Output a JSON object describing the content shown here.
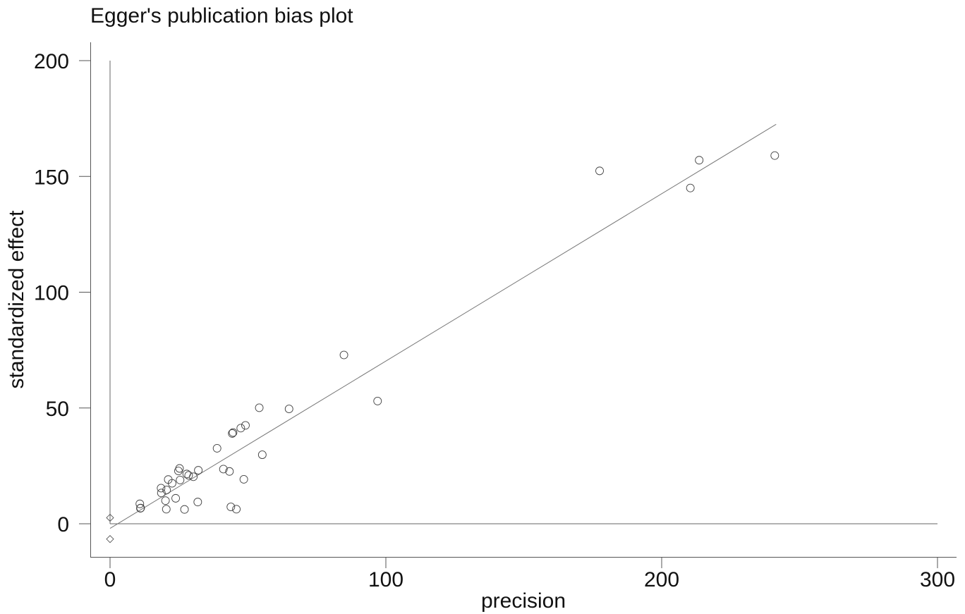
{
  "chart_data": {
    "type": "scatter",
    "title": "Egger's publication bias plot",
    "xlabel": "precision",
    "ylabel": "standardized effect",
    "xlim": [
      0,
      300
    ],
    "ylim": [
      -14,
      208
    ],
    "xticks": [
      0,
      100,
      200,
      300
    ],
    "yticks": [
      0,
      50,
      100,
      150,
      200
    ],
    "grid": false,
    "legend": "none",
    "reference_lines": {
      "x": 0,
      "y": 0
    },
    "regression_line": {
      "x_start": 0,
      "y_start": -2,
      "x_end": 241.5,
      "y_end": 172.5
    },
    "intercept_ci_markers": [
      {
        "x": 0,
        "y": 2.6
      },
      {
        "x": 0,
        "y": -6.6
      }
    ],
    "points": [
      {
        "x": 10.8,
        "y": 8.6
      },
      {
        "x": 11.0,
        "y": 6.7
      },
      {
        "x": 11.1,
        "y": 6.8
      },
      {
        "x": 18.5,
        "y": 15.4
      },
      {
        "x": 18.6,
        "y": 13.3
      },
      {
        "x": 20.1,
        "y": 10.0
      },
      {
        "x": 20.4,
        "y": 6.3
      },
      {
        "x": 20.5,
        "y": 14.6
      },
      {
        "x": 21.1,
        "y": 19.1
      },
      {
        "x": 22.5,
        "y": 17.5
      },
      {
        "x": 23.8,
        "y": 11.0
      },
      {
        "x": 24.8,
        "y": 22.8
      },
      {
        "x": 25.2,
        "y": 23.9
      },
      {
        "x": 25.4,
        "y": 18.9
      },
      {
        "x": 27.0,
        "y": 6.2
      },
      {
        "x": 27.8,
        "y": 21.5
      },
      {
        "x": 28.5,
        "y": 20.9
      },
      {
        "x": 30.2,
        "y": 20.3
      },
      {
        "x": 31.8,
        "y": 9.4
      },
      {
        "x": 32.0,
        "y": 23.1
      },
      {
        "x": 38.8,
        "y": 32.6
      },
      {
        "x": 41.1,
        "y": 23.6
      },
      {
        "x": 43.3,
        "y": 22.6
      },
      {
        "x": 43.8,
        "y": 7.3
      },
      {
        "x": 44.3,
        "y": 39.0
      },
      {
        "x": 44.6,
        "y": 39.4
      },
      {
        "x": 45.8,
        "y": 6.3
      },
      {
        "x": 47.4,
        "y": 41.3
      },
      {
        "x": 48.5,
        "y": 19.2
      },
      {
        "x": 49.1,
        "y": 42.5
      },
      {
        "x": 54.1,
        "y": 50.1
      },
      {
        "x": 55.2,
        "y": 29.8
      },
      {
        "x": 64.9,
        "y": 49.6
      },
      {
        "x": 84.8,
        "y": 72.9
      },
      {
        "x": 97.0,
        "y": 53.0
      },
      {
        "x": 177.5,
        "y": 152.4
      },
      {
        "x": 210.4,
        "y": 145.0
      },
      {
        "x": 213.6,
        "y": 157.0
      },
      {
        "x": 241.0,
        "y": 159.0
      }
    ]
  }
}
